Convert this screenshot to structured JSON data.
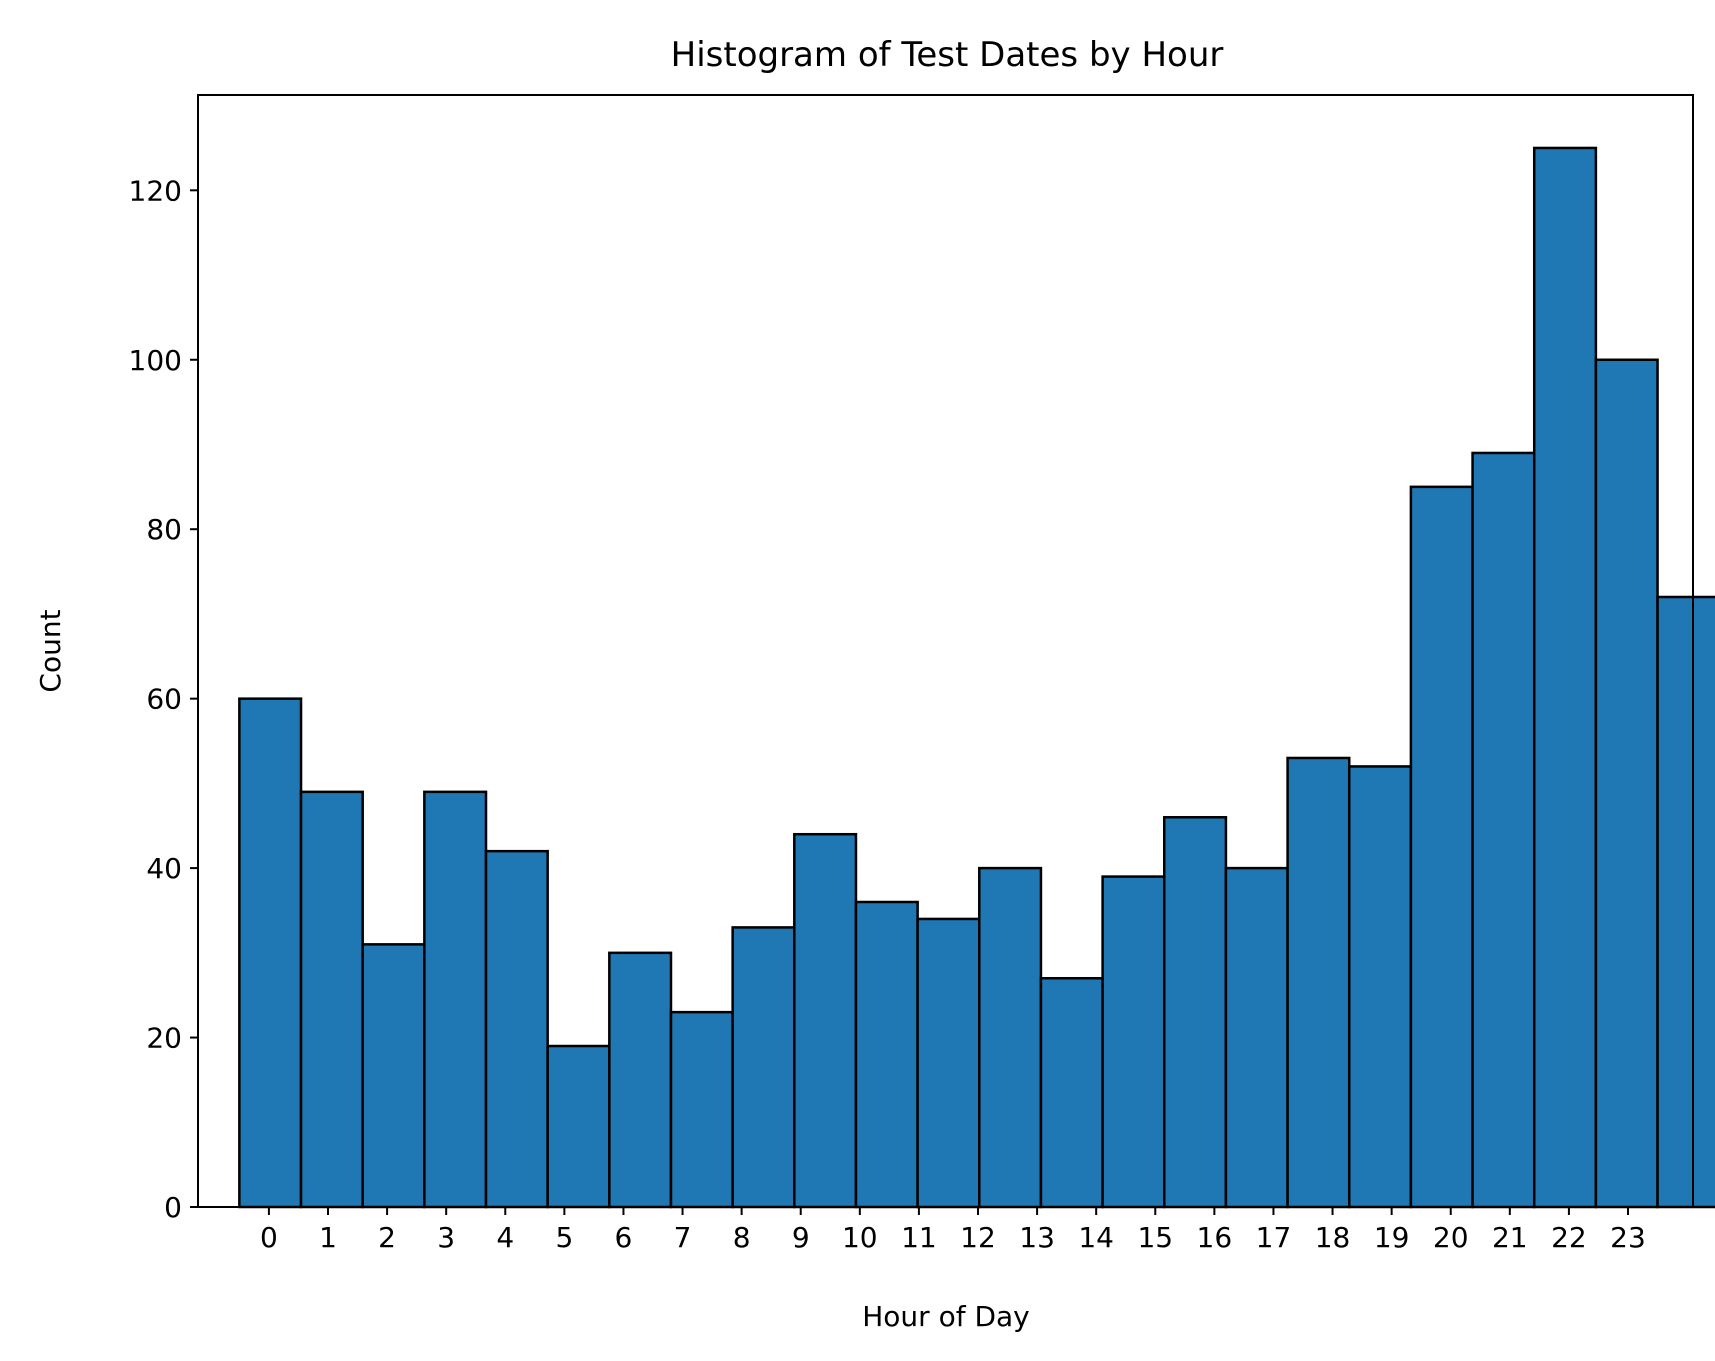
{
  "chart_data": {
    "type": "bar",
    "title": "Histogram of Test Dates by Hour",
    "xlabel": "Hour of Day",
    "ylabel": "Count",
    "categories": [
      "0",
      "1",
      "2",
      "3",
      "4",
      "5",
      "6",
      "7",
      "8",
      "9",
      "10",
      "11",
      "12",
      "13",
      "14",
      "15",
      "16",
      "17",
      "18",
      "19",
      "20",
      "21",
      "22",
      "23"
    ],
    "values": [
      60,
      49,
      31,
      49,
      42,
      19,
      30,
      23,
      33,
      44,
      36,
      34,
      40,
      27,
      39,
      46,
      40,
      53,
      52,
      85,
      89,
      125,
      100,
      72
    ],
    "yticks": [
      0,
      20,
      40,
      60,
      80,
      100,
      120
    ],
    "ylim": [
      0,
      131.25
    ],
    "xlim": [
      -1.2,
      24.1
    ],
    "grid": false,
    "colors": {
      "bar": "#1f77b4",
      "edge": "#000000"
    }
  }
}
